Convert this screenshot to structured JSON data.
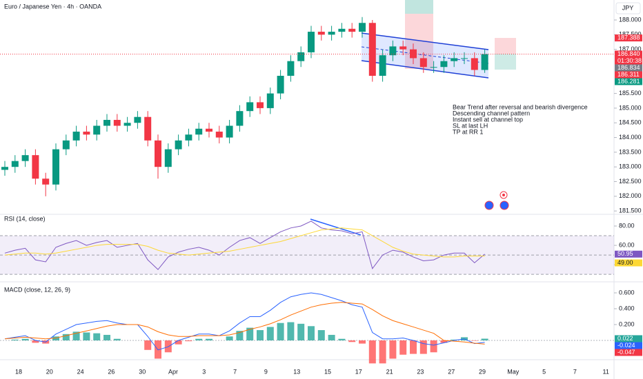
{
  "chart_data": {
    "type": "candlestick",
    "title": "Euro / Japanese Yen · 4h · OANDA",
    "currency": "JPY",
    "up_color": "#089981",
    "down_color": "#f23645",
    "open": [
      182.9,
      183.0,
      183.2,
      183.4,
      182.6,
      182.4,
      183.6,
      183.9,
      184.2,
      184.1,
      184.4,
      184.6,
      184.4,
      184.5,
      184.7,
      183.9,
      183.0,
      183.6,
      183.9,
      184.1,
      184.3,
      184.2,
      184.0,
      184.4,
      184.9,
      185.2,
      185.0,
      185.5,
      186.1,
      186.6,
      186.9,
      187.6,
      187.5,
      187.6,
      187.7,
      187.6,
      187.9,
      186.1,
      186.8,
      187.1,
      187.0,
      186.7,
      186.4,
      186.4,
      186.6,
      186.7,
      186.7,
      186.3
    ],
    "high": [
      183.2,
      183.4,
      183.6,
      183.6,
      182.8,
      183.8,
      184.1,
      184.4,
      184.4,
      184.6,
      184.8,
      184.8,
      184.7,
      184.9,
      184.9,
      184.1,
      183.8,
      184.1,
      184.3,
      184.5,
      184.5,
      184.4,
      184.6,
      185.1,
      185.4,
      185.4,
      185.7,
      186.3,
      186.8,
      187.1,
      187.8,
      187.8,
      187.8,
      187.9,
      187.9,
      188.1,
      188.0,
      187.0,
      187.3,
      187.3,
      187.2,
      186.9,
      186.6,
      186.8,
      186.9,
      186.9,
      186.9,
      187.0
    ],
    "low": [
      182.7,
      182.8,
      183.0,
      182.4,
      182.0,
      182.2,
      183.4,
      183.7,
      183.9,
      183.9,
      184.2,
      184.2,
      184.2,
      184.3,
      183.7,
      182.6,
      182.8,
      183.4,
      183.7,
      183.9,
      184.0,
      183.8,
      183.8,
      184.2,
      184.7,
      184.8,
      184.8,
      185.3,
      185.9,
      186.4,
      186.7,
      187.3,
      187.3,
      187.4,
      187.4,
      187.4,
      185.9,
      185.9,
      186.6,
      186.8,
      186.5,
      186.2,
      186.2,
      186.2,
      186.4,
      186.5,
      186.1,
      186.2
    ],
    "close": [
      183.0,
      183.2,
      183.4,
      182.6,
      182.4,
      183.6,
      183.9,
      184.2,
      184.1,
      184.4,
      184.6,
      184.4,
      184.5,
      184.7,
      183.9,
      183.0,
      183.6,
      183.9,
      184.1,
      184.3,
      184.2,
      184.0,
      184.4,
      184.9,
      185.2,
      185.0,
      185.5,
      186.1,
      186.6,
      186.9,
      187.6,
      187.5,
      187.6,
      187.7,
      187.6,
      187.9,
      186.1,
      186.8,
      187.1,
      187.0,
      186.7,
      186.4,
      186.4,
      186.6,
      186.7,
      186.7,
      186.3,
      186.84
    ],
    "ylim": [
      181.41,
      188.68
    ],
    "yticks": [
      {
        "value": 188,
        "label": "188.000"
      },
      {
        "value": 187.5,
        "label": "187.500"
      },
      {
        "value": 187,
        "label": "187.000"
      },
      {
        "value": 185.5,
        "label": "185.500"
      },
      {
        "value": 185,
        "label": "185.000"
      },
      {
        "value": 184.5,
        "label": "184.500"
      },
      {
        "value": 184,
        "label": "184.000"
      },
      {
        "value": 183.5,
        "label": "183.500"
      },
      {
        "value": 183,
        "label": "183.000"
      },
      {
        "value": 182.5,
        "label": "182.500"
      },
      {
        "value": 182,
        "label": "182.000"
      },
      {
        "value": 181.5,
        "label": "181.500"
      }
    ],
    "price_labels": [
      {
        "value": 187.388,
        "label": "187.388",
        "color": "#f23645"
      },
      {
        "value": 186.84,
        "label": "186.840",
        "color": "#f23645"
      },
      {
        "value": 186.834,
        "label": "186.834",
        "color": "#787b86"
      },
      {
        "value": 186.311,
        "label": "186.311",
        "color": "#f23645"
      },
      {
        "value": 186.281,
        "label": "186.281",
        "color": "#089981"
      }
    ],
    "countdown": "01:30:38",
    "annotation": [
      "Bear Trend after reversal and bearish divergence",
      "Descending channel pattern",
      "Instant sell at channel top",
      "SL at last LH",
      "TP at RR 1"
    ],
    "xlabels": [
      "18",
      "20",
      "24",
      "26",
      "30",
      "Apr",
      "3",
      "7",
      "9",
      "13",
      "15",
      "17",
      "21",
      "23",
      "27",
      "29",
      "May",
      "5",
      "7",
      "11"
    ],
    "rsi": {
      "title": "RSI (14, close)",
      "ylim": [
        23,
        91.4
      ],
      "yticks": [
        {
          "value": 80,
          "label": "80.00"
        },
        {
          "value": 60,
          "label": "60.00"
        },
        {
          "value": 40,
          "label": "40.00"
        }
      ],
      "bands": [
        70,
        50,
        30
      ],
      "series": [
        {
          "name": "RSI",
          "color": "#7e57c2",
          "last_label": "50.95",
          "values": [
            52,
            55,
            57,
            45,
            43,
            58,
            62,
            65,
            60,
            63,
            65,
            58,
            60,
            62,
            45,
            35,
            48,
            53,
            56,
            58,
            55,
            50,
            58,
            65,
            68,
            62,
            68,
            74,
            78,
            80,
            85,
            78,
            76,
            75,
            72,
            74,
            36,
            50,
            55,
            53,
            48,
            44,
            45,
            50,
            52,
            52,
            42,
            50.95
          ]
        },
        {
          "name": "MA",
          "color": "#fdd835",
          "last_label": "49.00",
          "values": [
            50,
            51,
            52,
            52,
            51,
            52,
            54,
            56,
            58,
            60,
            61,
            61,
            61,
            61,
            59,
            55,
            52,
            51,
            50,
            51,
            52,
            53,
            54,
            56,
            58,
            60,
            62,
            64,
            67,
            70,
            73,
            76,
            77,
            78,
            77,
            76,
            70,
            64,
            58,
            54,
            51,
            50,
            49,
            48,
            48,
            49,
            49,
            49.0
          ]
        }
      ]
    },
    "macd": {
      "title": "MACD (close, 12, 26, 9)",
      "ylim": [
        -0.226,
        0.713
      ],
      "yticks": [
        {
          "value": 0.6,
          "label": "0.600"
        },
        {
          "value": 0.4,
          "label": "0.400"
        },
        {
          "value": 0.2,
          "label": "0.200"
        }
      ],
      "histogram": {
        "name": "Histogram",
        "color_up": "#26a69a",
        "color_down": "#ff5252",
        "last_label": "0.022",
        "values": [
          0,
          0.01,
          0.02,
          -0.03,
          -0.04,
          0.05,
          0.08,
          0.11,
          0.1,
          0.09,
          0.07,
          0.02,
          0,
          0,
          -0.12,
          -0.23,
          -0.15,
          -0.05,
          -0.01,
          0.02,
          0.02,
          0,
          0.05,
          0.12,
          0.16,
          0.13,
          0.17,
          0.22,
          0.23,
          0.21,
          0.18,
          0.13,
          0.07,
          0.02,
          -0.02,
          -0.04,
          -0.29,
          -0.29,
          -0.23,
          -0.18,
          -0.17,
          -0.17,
          -0.15,
          -0.03,
          0.01,
          0.04,
          -0.005,
          0.022
        ]
      },
      "series": [
        {
          "name": "MACD",
          "color": "#2962ff",
          "label_color": "#2962ff",
          "last_label": "-0.024",
          "values": [
            0.02,
            0.04,
            0.06,
            0,
            -0.02,
            0.08,
            0.14,
            0.2,
            0.22,
            0.24,
            0.25,
            0.22,
            0.2,
            0.2,
            0.05,
            -0.12,
            -0.08,
            0,
            0.04,
            0.08,
            0.08,
            0.06,
            0.12,
            0.22,
            0.3,
            0.3,
            0.38,
            0.48,
            0.55,
            0.58,
            0.6,
            0.58,
            0.54,
            0.5,
            0.45,
            0.42,
            0.1,
            0.02,
            0.02,
            0.03,
            0,
            -0.04,
            -0.06,
            -0.03,
            0,
            0.02,
            -0.04,
            -0.024
          ]
        },
        {
          "name": "Signal",
          "color": "#ff6d00",
          "label_color": "#f23645",
          "last_label": "-0.047",
          "values": [
            0.02,
            0.03,
            0.04,
            0.03,
            0.02,
            0.03,
            0.06,
            0.09,
            0.12,
            0.15,
            0.18,
            0.2,
            0.2,
            0.2,
            0.17,
            0.11,
            0.07,
            0.05,
            0.05,
            0.06,
            0.06,
            0.06,
            0.07,
            0.1,
            0.14,
            0.17,
            0.21,
            0.26,
            0.32,
            0.37,
            0.42,
            0.45,
            0.47,
            0.48,
            0.47,
            0.46,
            0.39,
            0.31,
            0.25,
            0.21,
            0.17,
            0.13,
            0.09,
            0,
            -0.01,
            -0.02,
            -0.035,
            -0.047
          ]
        }
      ]
    }
  }
}
